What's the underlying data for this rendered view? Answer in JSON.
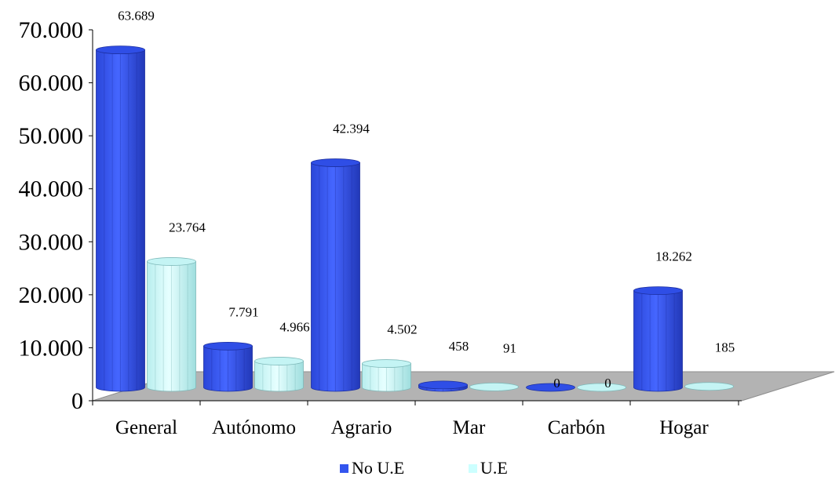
{
  "chart_data": {
    "type": "bar",
    "style": "3d-cylinder",
    "categories": [
      "General",
      "Autónomo",
      "Agrario",
      "Mar",
      "Carbón",
      "Hogar"
    ],
    "series": [
      {
        "name": "No U.E",
        "values": [
          63689,
          7791,
          42394,
          458,
          0,
          18262
        ],
        "labels": [
          "63.689",
          "7.791",
          "42.394",
          "458",
          "0",
          "18.262"
        ],
        "color": "#3355ee"
      },
      {
        "name": "U.E",
        "values": [
          23764,
          4966,
          4502,
          91,
          0,
          185
        ],
        "labels": [
          "23.764",
          "4.966",
          "4.502",
          "91",
          "0",
          "185"
        ],
        "color": "#ccffff"
      }
    ],
    "y_ticks": [
      {
        "value": 0,
        "label": "0"
      },
      {
        "value": 10000,
        "label": "10.000"
      },
      {
        "value": 20000,
        "label": "20.000"
      },
      {
        "value": 30000,
        "label": "30.000"
      },
      {
        "value": 40000,
        "label": "40.000"
      },
      {
        "value": 50000,
        "label": "50.000"
      },
      {
        "value": 60000,
        "label": "60.000"
      },
      {
        "value": 70000,
        "label": "70.000"
      }
    ],
    "ylim": [
      0,
      70000
    ],
    "legend_position": "bottom",
    "grid": false,
    "title": "",
    "xlabel": "",
    "ylabel": ""
  }
}
